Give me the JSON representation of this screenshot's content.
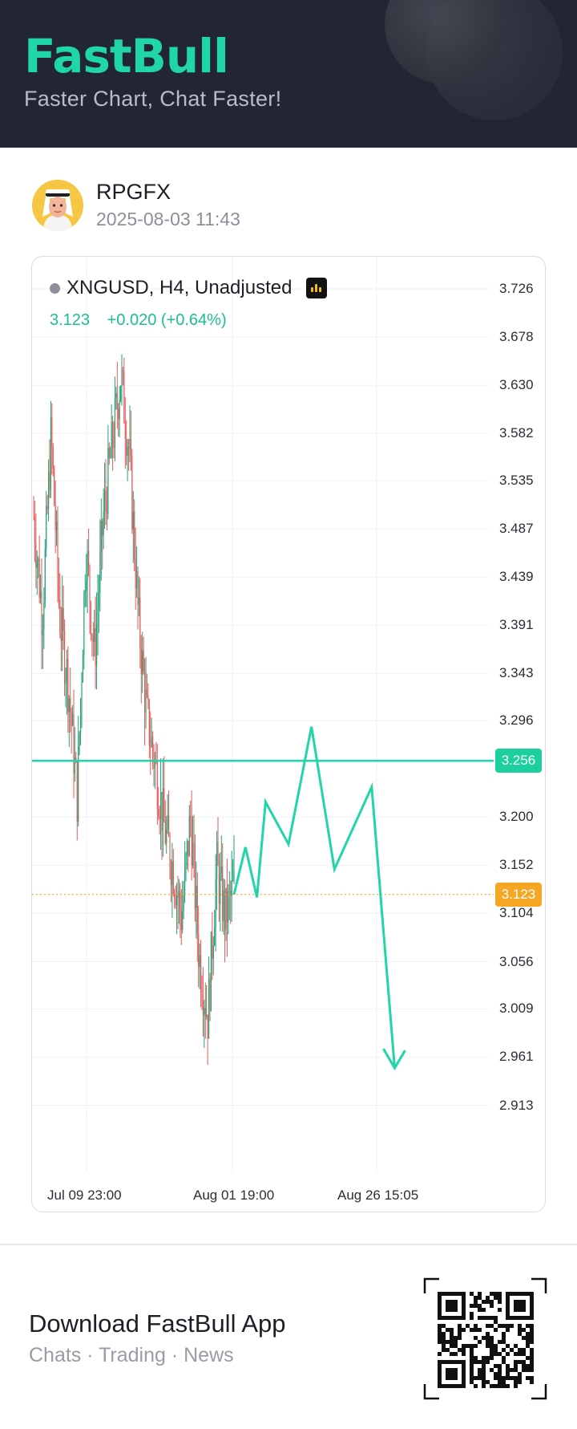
{
  "header": {
    "brand": "FastBull",
    "tagline": "Faster Chart, Chat Faster!"
  },
  "post": {
    "author": "RPGFX",
    "timestamp": "2025-08-03 11:43"
  },
  "chart": {
    "symbol": "XNGUSD, H4, Unadjusted",
    "last_price": "3.123",
    "change": "+0.020 (+0.64%)",
    "colors": {
      "up": "#26a27a",
      "down": "#e35b5b",
      "drawing": "#20d6a8",
      "current": "#f5a623"
    }
  },
  "chart_data": {
    "type": "candlestick",
    "timeframe": "H4",
    "x_tick_labels": [
      "Jul 09 23:00",
      "Aug 01 19:00",
      "Aug 26 15:05"
    ],
    "y_tick_labels": [
      "3.726",
      "3.678",
      "3.630",
      "3.582",
      "3.535",
      "3.487",
      "3.439",
      "3.391",
      "3.343",
      "3.296",
      "3.200",
      "3.152",
      "3.104",
      "3.056",
      "3.009",
      "2.961",
      "2.913"
    ],
    "ylim": [
      2.89,
      3.75
    ],
    "grid": true,
    "horizontal_line": {
      "value": 3.256,
      "label": "3.256"
    },
    "current_price_line": {
      "value": 3.123,
      "label": "3.123"
    },
    "price_path": [
      3.5,
      3.4,
      3.58,
      3.4,
      3.33,
      3.22,
      3.47,
      3.36,
      3.5,
      3.57,
      3.64,
      3.56,
      3.4,
      3.3,
      3.25,
      3.19,
      3.15,
      3.1,
      3.2,
      3.06,
      3.0,
      3.15,
      3.1,
      3.13
    ],
    "forecast_path": [
      {
        "bar": 0,
        "price": 3.123
      },
      {
        "bar": 4,
        "price": 3.17
      },
      {
        "bar": 8,
        "price": 3.12
      },
      {
        "bar": 11,
        "price": 3.215
      },
      {
        "bar": 19,
        "price": 3.173
      },
      {
        "bar": 27,
        "price": 3.29
      },
      {
        "bar": 35,
        "price": 3.148
      },
      {
        "bar": 48,
        "price": 3.23
      },
      {
        "bar": 56,
        "price": 2.95
      }
    ]
  },
  "footer": {
    "title": "Download FastBull App",
    "subtitle": "Chats · Trading · News"
  }
}
